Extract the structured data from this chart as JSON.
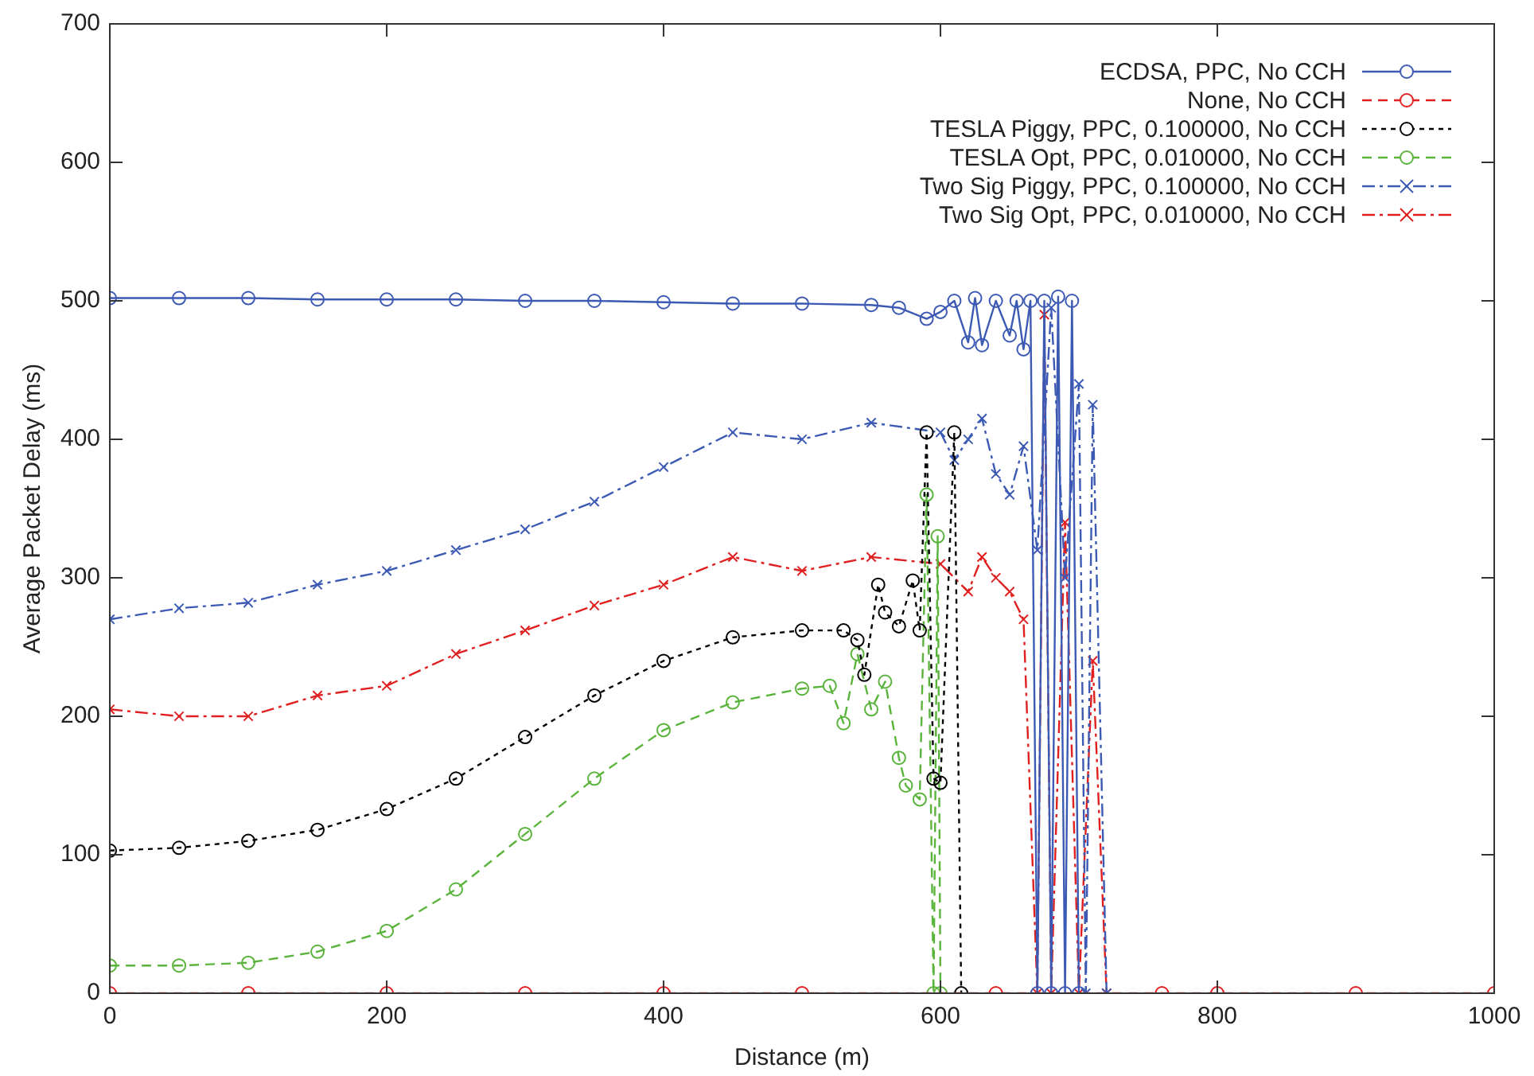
{
  "chart_data": {
    "type": "line",
    "xlabel": "Distance (m)",
    "ylabel": "Average Packet Delay (ms)",
    "xlim": [
      0,
      1000
    ],
    "xticks": [
      0,
      200,
      400,
      600,
      800,
      1000
    ],
    "ylim": [
      0,
      700
    ],
    "yticks": [
      0,
      100,
      200,
      300,
      400,
      500,
      600,
      700
    ],
    "grid": false,
    "legend": "top right",
    "series": [
      {
        "name": "ECDSA, PPC, No CCH",
        "color": "#3c5ab4",
        "marker": "circle",
        "line_style": "solid",
        "x": [
          0,
          50,
          100,
          150,
          200,
          250,
          300,
          350,
          400,
          450,
          500,
          550,
          570,
          590,
          600,
          610,
          620,
          625,
          630,
          640,
          650,
          655,
          660,
          665,
          670,
          675,
          680,
          685,
          690,
          695,
          700
        ],
        "values": [
          502,
          502,
          502,
          501,
          501,
          501,
          500,
          500,
          499,
          498,
          498,
          497,
          495,
          487,
          492,
          500,
          470,
          502,
          468,
          500,
          475,
          500,
          465,
          500,
          0,
          500,
          0,
          503,
          0,
          500,
          0
        ]
      },
      {
        "name": "None, No CCH",
        "color": "#e02020",
        "marker": "circle",
        "line_style": "dashed",
        "x": [
          0,
          100,
          200,
          300,
          400,
          500,
          640,
          760,
          800,
          900,
          1000
        ],
        "values": [
          0,
          0,
          0,
          0,
          0,
          0,
          0,
          0,
          0,
          0,
          0
        ]
      },
      {
        "name": "TESLA Piggy, PPC, 0.100000, No CCH",
        "color": "#000000",
        "marker": "circle",
        "line_style": "dotted",
        "x": [
          0,
          50,
          100,
          150,
          200,
          250,
          300,
          350,
          400,
          450,
          500,
          530,
          540,
          545,
          555,
          560,
          570,
          580,
          585,
          590,
          595,
          600,
          610,
          615
        ],
        "values": [
          103,
          105,
          110,
          118,
          133,
          155,
          185,
          215,
          240,
          257,
          262,
          262,
          255,
          230,
          295,
          275,
          265,
          298,
          262,
          405,
          155,
          152,
          405,
          0
        ]
      },
      {
        "name": "TESLA Opt, PPC, 0.010000, No CCH",
        "color": "#5ab43c",
        "marker": "circle",
        "line_style": "dashed",
        "x": [
          0,
          50,
          100,
          150,
          200,
          250,
          300,
          350,
          400,
          450,
          500,
          520,
          530,
          540,
          550,
          560,
          570,
          575,
          585,
          590,
          595,
          598,
          600
        ],
        "values": [
          20,
          20,
          22,
          30,
          45,
          75,
          115,
          155,
          190,
          210,
          220,
          222,
          195,
          245,
          205,
          225,
          170,
          150,
          140,
          360,
          0,
          330,
          0
        ]
      },
      {
        "name": "Two Sig Piggy, PPC, 0.100000, No CCH",
        "color": "#3c5ab4",
        "marker": "cross",
        "line_style": "dashdot",
        "x": [
          0,
          50,
          100,
          150,
          200,
          250,
          300,
          350,
          400,
          450,
          500,
          550,
          600,
          610,
          620,
          630,
          640,
          650,
          660,
          670,
          680,
          690,
          700,
          705,
          710,
          720
        ],
        "values": [
          270,
          278,
          282,
          295,
          305,
          320,
          335,
          355,
          380,
          405,
          400,
          412,
          405,
          385,
          400,
          415,
          375,
          360,
          395,
          320,
          495,
          300,
          440,
          0,
          425,
          0
        ]
      },
      {
        "name": "Two Sig Opt, PPC, 0.010000, No CCH",
        "color": "#e02020",
        "marker": "cross",
        "line_style": "dashdot",
        "x": [
          0,
          50,
          100,
          150,
          200,
          250,
          300,
          350,
          400,
          450,
          500,
          550,
          600,
          620,
          630,
          640,
          650,
          660,
          670,
          675,
          680,
          690,
          700,
          710,
          720
        ],
        "values": [
          205,
          200,
          200,
          215,
          222,
          245,
          262,
          280,
          295,
          315,
          305,
          315,
          310,
          290,
          315,
          300,
          290,
          270,
          0,
          490,
          0,
          340,
          0,
          240,
          0
        ]
      }
    ]
  }
}
